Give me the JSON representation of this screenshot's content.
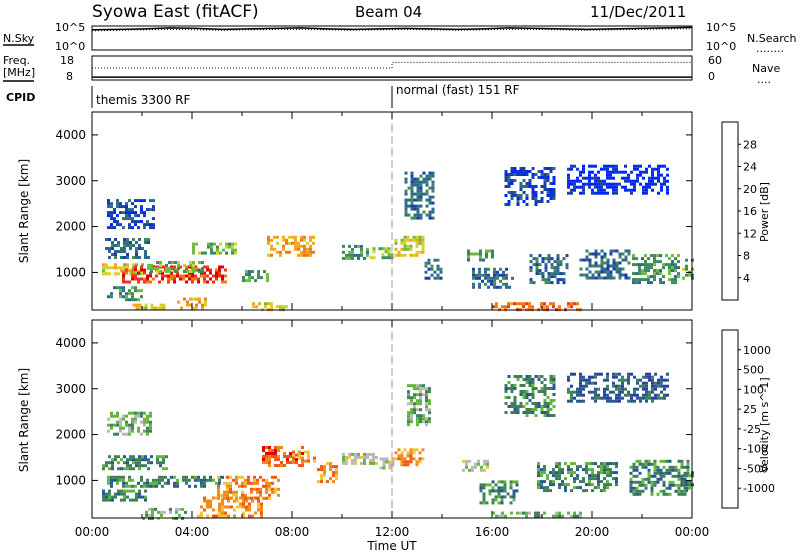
{
  "header": {
    "station": "Syowa East (fitACF)",
    "beam": "Beam 04",
    "date": "11/Dec/2011"
  },
  "chart_data": [
    {
      "type": "line",
      "panel": "noise",
      "left_label": "N.Sky",
      "right_label": "N.Search",
      "right_marker": "........",
      "left_ticks": [
        "10^5",
        "10^0"
      ],
      "right_ticks": [
        "10^5",
        "10^0"
      ],
      "log_scale": true,
      "series": [
        {
          "style": "solid",
          "values": [
            4.2,
            4.3,
            4.4,
            4.6,
            4.5,
            4.3,
            4.4,
            4.5,
            4.6,
            4.4,
            4.3,
            4.4,
            4.5,
            4.4,
            4.3,
            4.4,
            4.6,
            4.5,
            4.4,
            4.3,
            4.4,
            4.5,
            4.6,
            4.7
          ]
        },
        {
          "style": "dotted",
          "values": [
            4.0,
            4.1,
            4.2,
            4.3,
            4.2,
            4.1,
            4.2,
            4.3,
            4.3,
            4.2,
            4.1,
            4.2,
            4.3,
            4.2,
            4.1,
            4.2,
            4.3,
            4.3,
            4.2,
            4.1,
            4.2,
            4.3,
            4.4,
            4.4
          ]
        }
      ]
    },
    {
      "type": "line",
      "panel": "frequency",
      "left_label_1": "Freq.",
      "left_label_2": "[MHz]",
      "right_label": "Nave",
      "right_marker": "....",
      "left_ticks": [
        "18",
        "8"
      ],
      "right_ticks": [
        "60",
        "0"
      ],
      "series": [
        {
          "name": "Freq",
          "style": "solid",
          "x": [
            0,
            12,
            24
          ],
          "values": [
            9.2,
            9.2,
            9.2
          ]
        },
        {
          "name": "Nave",
          "style": "dotted",
          "x": [
            0,
            12,
            12,
            24
          ],
          "values": [
            30,
            30,
            44,
            44
          ]
        }
      ]
    },
    {
      "type": "table",
      "panel": "cpid",
      "label": "CPID",
      "segments": [
        {
          "start": 0,
          "end": 12,
          "text": "themis 3300 RF"
        },
        {
          "start": 12,
          "end": 24,
          "text": "normal (fast) 151 RF"
        }
      ]
    },
    {
      "type": "heatmap",
      "panel": "power",
      "ylabel": "Slant Range [km]",
      "ylim": [
        180,
        4500
      ],
      "yticks": [
        1000,
        2000,
        3000,
        4000
      ],
      "xlim": [
        0,
        24
      ],
      "colorbar": {
        "label": "Power [dB]",
        "ticks": [
          "28",
          "24",
          "20",
          "16",
          "12",
          "8",
          "4"
        ],
        "colors": [
          "#0026ff",
          "#1a3fa8",
          "#2e6a8c",
          "#3f8a5c",
          "#6dbb40",
          "#d8d02a",
          "#f5a321",
          "#f07a1a",
          "#e8391c",
          "#e00000"
        ]
      },
      "echoes": [
        {
          "t0": 0.4,
          "t1": 2.3,
          "r0": 1350,
          "r1": 1750,
          "level": 2
        },
        {
          "t0": 0.4,
          "t1": 2.0,
          "r0": 1000,
          "r1": 1200,
          "level": 5
        },
        {
          "t0": 1.2,
          "t1": 5.4,
          "r0": 800,
          "r1": 1150,
          "level": 8
        },
        {
          "t0": 2.2,
          "t1": 4.4,
          "r0": 1050,
          "r1": 1250,
          "level": 4
        },
        {
          "t0": 0.6,
          "t1": 2.0,
          "r0": 400,
          "r1": 700,
          "level": 3
        },
        {
          "t0": 3.4,
          "t1": 4.6,
          "r0": 250,
          "r1": 450,
          "level": 6
        },
        {
          "t0": 1.5,
          "t1": 3.0,
          "r0": 200,
          "r1": 320,
          "level": 5
        },
        {
          "t0": 4.0,
          "t1": 5.8,
          "r0": 1400,
          "r1": 1650,
          "level": 4
        },
        {
          "t0": 6.4,
          "t1": 7.8,
          "r0": 200,
          "r1": 350,
          "level": 5
        },
        {
          "t0": 7.0,
          "t1": 8.9,
          "r0": 1350,
          "r1": 1800,
          "level": 6
        },
        {
          "t0": 6.0,
          "t1": 7.0,
          "r0": 850,
          "r1": 1050,
          "level": 3
        },
        {
          "t0": 10.0,
          "t1": 11.0,
          "r0": 1300,
          "r1": 1600,
          "level": 3
        },
        {
          "t0": 11.1,
          "t1": 12.0,
          "r0": 1350,
          "r1": 1550,
          "level": 4
        },
        {
          "t0": 12.1,
          "t1": 13.2,
          "r0": 1400,
          "r1": 1800,
          "level": 5
        },
        {
          "t0": 13.3,
          "t1": 14.0,
          "r0": 900,
          "r1": 1300,
          "level": 2
        },
        {
          "t0": 15.0,
          "t1": 16.0,
          "r0": 1250,
          "r1": 1500,
          "level": 3
        },
        {
          "t0": 16.0,
          "t1": 19.5,
          "r0": 200,
          "r1": 350,
          "level": 7
        },
        {
          "t0": 15.2,
          "t1": 16.8,
          "r0": 700,
          "r1": 1100,
          "level": 2
        },
        {
          "t0": 17.5,
          "t1": 19.0,
          "r0": 800,
          "r1": 1400,
          "level": 2
        },
        {
          "t0": 19.5,
          "t1": 21.5,
          "r0": 900,
          "r1": 1500,
          "level": 2
        },
        {
          "t0": 21.6,
          "t1": 23.5,
          "r0": 800,
          "r1": 1400,
          "level": 3
        },
        {
          "t0": 23.6,
          "t1": 24.0,
          "r0": 900,
          "r1": 1300,
          "level": 4
        },
        {
          "t0": 12.5,
          "t1": 13.6,
          "r0": 2200,
          "r1": 3200,
          "level": 2
        },
        {
          "t0": 16.5,
          "t1": 18.5,
          "r0": 2500,
          "r1": 3300,
          "level": 1
        },
        {
          "t0": 19.0,
          "t1": 23.0,
          "r0": 2700,
          "r1": 3350,
          "level": 0
        },
        {
          "t0": 0.6,
          "t1": 2.5,
          "r0": 2000,
          "r1": 2600,
          "level": 1
        }
      ]
    },
    {
      "type": "heatmap",
      "panel": "velocity",
      "ylabel": "Slant Range [km]",
      "ylim": [
        180,
        4500
      ],
      "yticks": [
        1000,
        2000,
        3000,
        4000
      ],
      "xlim": [
        0,
        24
      ],
      "xticks": [
        "00:00",
        "04:00",
        "08:00",
        "12:00",
        "16:00",
        "20:00",
        "00:00"
      ],
      "xlabel": "Time UT",
      "colorbar": {
        "label": "Velocity [m s^-1]",
        "ticks": [
          "1000",
          "500",
          "100",
          "25",
          "-25",
          "-100",
          "-500",
          "-1000"
        ],
        "colors": [
          "#2a3ea8",
          "#2a5a8c",
          "#3f7f5a",
          "#5fb83a",
          "#b8b8b8",
          "#f5c23a",
          "#f08a1a",
          "#f05a14",
          "#e00000"
        ]
      },
      "echoes": [
        {
          "t0": 0.4,
          "t1": 3.0,
          "r0": 1250,
          "r1": 1550,
          "level": 2
        },
        {
          "t0": 0.6,
          "t1": 5.2,
          "r0": 850,
          "r1": 1100,
          "level": 2
        },
        {
          "t0": 0.4,
          "t1": 2.2,
          "r0": 600,
          "r1": 800,
          "level": 2
        },
        {
          "t0": 4.2,
          "t1": 6.8,
          "r0": 200,
          "r1": 650,
          "level": 6
        },
        {
          "t0": 5.0,
          "t1": 7.5,
          "r0": 600,
          "r1": 1100,
          "level": 6
        },
        {
          "t0": 6.8,
          "t1": 8.4,
          "r0": 1300,
          "r1": 1750,
          "level": 7
        },
        {
          "t0": 8.0,
          "t1": 8.9,
          "r0": 1400,
          "r1": 1650,
          "level": 6
        },
        {
          "t0": 9.0,
          "t1": 9.8,
          "r0": 1000,
          "r1": 1400,
          "level": 6
        },
        {
          "t0": 10.0,
          "t1": 11.4,
          "r0": 1350,
          "r1": 1600,
          "level": 4
        },
        {
          "t0": 11.5,
          "t1": 12.0,
          "r0": 1300,
          "r1": 1500,
          "level": 4
        },
        {
          "t0": 12.1,
          "t1": 13.2,
          "r0": 1350,
          "r1": 1700,
          "level": 6
        },
        {
          "t0": 14.8,
          "t1": 15.8,
          "r0": 1250,
          "r1": 1450,
          "level": 4
        },
        {
          "t0": 16.0,
          "t1": 19.5,
          "r0": 200,
          "r1": 320,
          "level": 3
        },
        {
          "t0": 15.5,
          "t1": 17.0,
          "r0": 500,
          "r1": 1000,
          "level": 2
        },
        {
          "t0": 17.8,
          "t1": 21.0,
          "r0": 800,
          "r1": 1400,
          "level": 2
        },
        {
          "t0": 21.5,
          "t1": 23.8,
          "r0": 700,
          "r1": 1450,
          "level": 2
        },
        {
          "t0": 23.6,
          "t1": 24.0,
          "r0": 800,
          "r1": 1200,
          "level": 2
        },
        {
          "t0": 2.0,
          "t1": 3.8,
          "r0": 200,
          "r1": 400,
          "level": 3
        },
        {
          "t0": 12.6,
          "t1": 13.5,
          "r0": 2200,
          "r1": 3100,
          "level": 3
        },
        {
          "t0": 16.5,
          "t1": 18.5,
          "r0": 2400,
          "r1": 3300,
          "level": 2
        },
        {
          "t0": 19.0,
          "t1": 23.0,
          "r0": 2700,
          "r1": 3350,
          "level": 1
        },
        {
          "t0": 0.6,
          "t1": 2.4,
          "r0": 2000,
          "r1": 2500,
          "level": 3
        }
      ]
    }
  ]
}
